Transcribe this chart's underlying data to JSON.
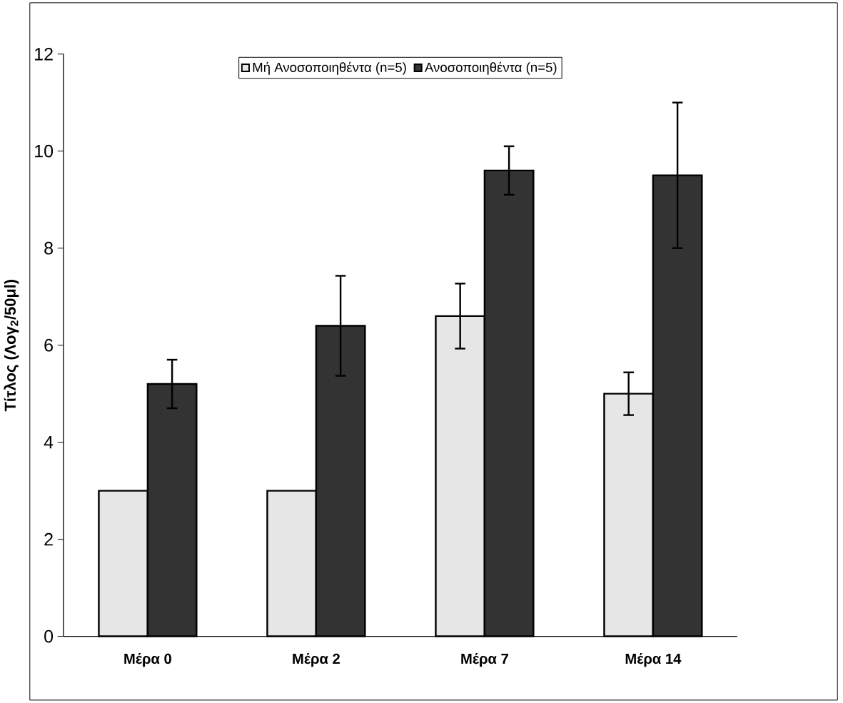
{
  "chart_data": {
    "type": "bar",
    "ylabel": "Τίτλος (Λογ$_{2}$/50μl)",
    "categories": [
      "Μέρα 0",
      "Μέρα 2",
      "Μέρα 7",
      "Μέρα 14"
    ],
    "series": [
      {
        "name": "Μή Ανοσοποιηθέντα (n=5)",
        "color": "#e6e6e6",
        "values": [
          3.0,
          3.0,
          6.6,
          5.0
        ],
        "errors": [
          null,
          null,
          0.67,
          0.44
        ]
      },
      {
        "name": "Ανοσοποιηθέντα (n=5)",
        "color": "#333333",
        "values": [
          5.2,
          6.4,
          9.6,
          9.5
        ],
        "errors": [
          0.5,
          1.03,
          0.5,
          1.5
        ]
      }
    ],
    "ylim": [
      0,
      12
    ],
    "yticks": [
      0,
      2,
      4,
      6,
      8,
      10,
      12
    ],
    "grid": false,
    "legend": "top"
  }
}
